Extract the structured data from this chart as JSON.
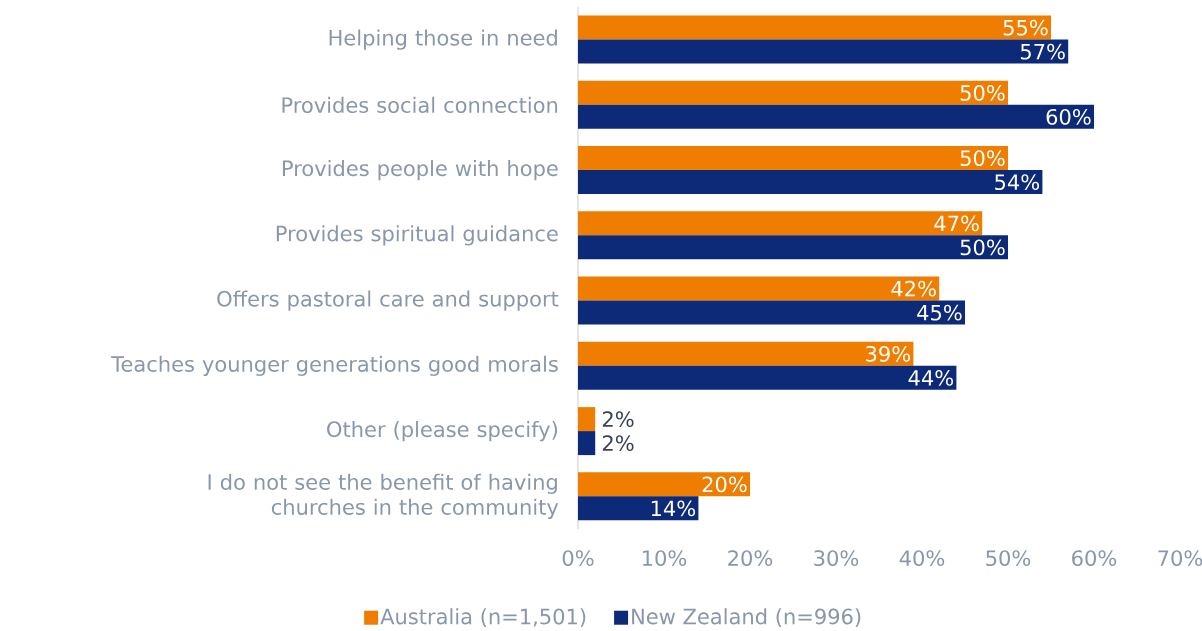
{
  "chart_data": {
    "type": "bar",
    "orientation": "horizontal",
    "categories": [
      "Helping those in need",
      "Provides social connection",
      "Provides people with hope",
      "Provides spiritual guidance",
      "Offers pastoral care and support",
      "Teaches younger generations good morals",
      "Other (please specify)",
      "I do not see the benefit of having churches in the community"
    ],
    "series": [
      {
        "name": "Australia (n=1,501)",
        "color": "#ef7d00",
        "values": [
          55,
          50,
          50,
          47,
          42,
          39,
          2,
          20
        ],
        "value_labels": [
          "55%",
          "50%",
          "50%",
          "47%",
          "42%",
          "39%",
          "2%",
          "20%"
        ]
      },
      {
        "name": "New Zealand (n=996)",
        "color": "#0c2a78",
        "values": [
          57,
          60,
          54,
          50,
          45,
          44,
          2,
          14
        ],
        "value_labels": [
          "57%",
          "60%",
          "54%",
          "50%",
          "45%",
          "44%",
          "2%",
          "14%"
        ]
      }
    ],
    "xlim": [
      0,
      70
    ],
    "xticks": [
      {
        "value": 0,
        "label": "0%"
      },
      {
        "value": 10,
        "label": "10%"
      },
      {
        "value": 20,
        "label": "20%"
      },
      {
        "value": 30,
        "label": "30%"
      },
      {
        "value": 40,
        "label": "40%"
      },
      {
        "value": 50,
        "label": "50%"
      },
      {
        "value": 60,
        "label": "60%"
      },
      {
        "value": 70,
        "label": "70%"
      }
    ],
    "legend": "bottom",
    "grid": false
  }
}
